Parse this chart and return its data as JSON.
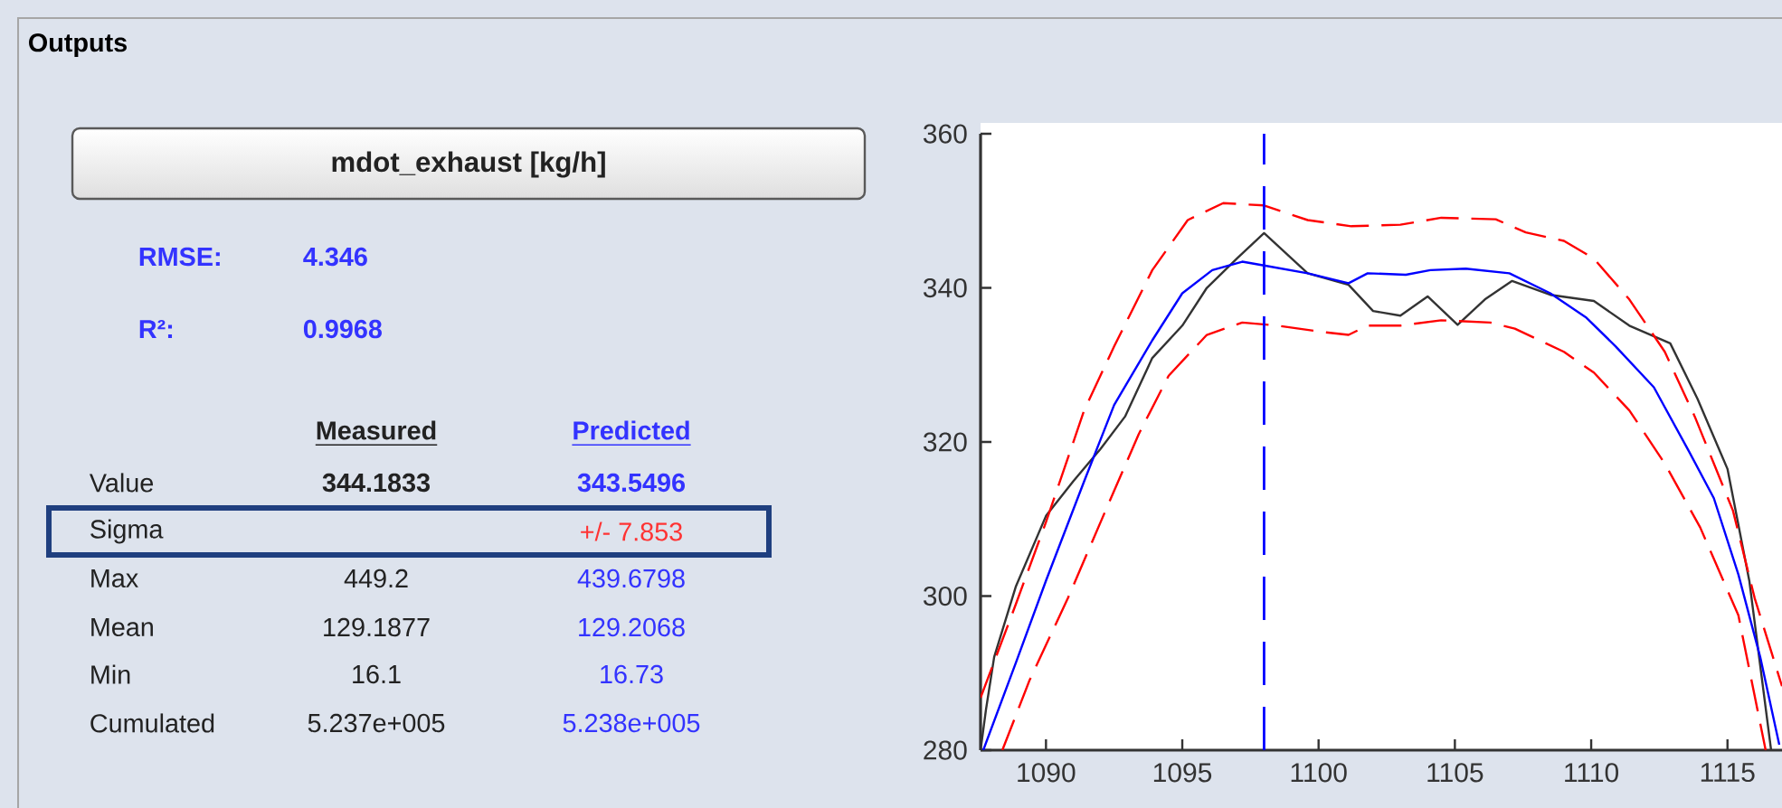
{
  "chart_data": [
    {
      "type": "other",
      "title": "Outputs",
      "subtitle": "mdot_exhaust [kg/h]",
      "annotations": [
        "RMSE:",
        "4.346",
        "R²:",
        "0.9968",
        "Measured",
        "Predicted",
        "Value",
        "344.1833",
        "343.5496",
        "Sigma",
        "+/- 7.853",
        "Max",
        "449.2",
        "439.6798",
        "Mean",
        "129.1877",
        "129.2068",
        "Min",
        "16.1",
        "16.73",
        "Cumulated",
        "5.237e+005",
        "5.238e+005"
      ]
    },
    {
      "type": "line",
      "xlim": [
        1087.6,
        1117
      ],
      "ylim": [
        280,
        360
      ],
      "xticks": [
        1090,
        1095,
        1100,
        1105,
        1110,
        1115
      ],
      "yticks": [
        280,
        300,
        320,
        340,
        360
      ],
      "ref_lines": [
        {
          "axis": "x",
          "value": 1098,
          "color": "#0000ff",
          "line_style": "dashed"
        }
      ],
      "series": [
        {
          "color": "#333333",
          "line_style": "solid",
          "x": [
            1087.6,
            1087.8,
            1088.1,
            1088.9,
            1090,
            1091,
            1092,
            1092.9,
            1093.9,
            1095,
            1095.9,
            1097,
            1098,
            1099.6,
            1101.1,
            1102,
            1103,
            1104,
            1105.1,
            1106.1,
            1107.1,
            1108.5,
            1110.1,
            1111.4,
            1112.9,
            1113.9,
            1115,
            1115.8,
            1116.6
          ],
          "values": [
            280,
            285.3,
            292.1,
            301.3,
            310.4,
            314.9,
            319.1,
            323.3,
            330.9,
            335.1,
            340,
            343.8,
            347.1,
            341.9,
            340.4,
            337,
            336.4,
            338.9,
            335.2,
            338.5,
            340.9,
            339.1,
            338.3,
            335.1,
            332.8,
            325.6,
            316.5,
            302,
            280
          ]
        },
        {
          "color": "#0000ff",
          "line_style": "solid",
          "x": [
            1087.7,
            1088.9,
            1090,
            1091.4,
            1092.5,
            1093.9,
            1095,
            1096.1,
            1097.2,
            1098,
            1099.6,
            1101.1,
            1101.8,
            1103.2,
            1104.1,
            1105.4,
            1107,
            1108.5,
            1109.8,
            1110.9,
            1112.3,
            1113.6,
            1114.5,
            1115.4,
            1116.2,
            1116.9
          ],
          "values": [
            280,
            291.4,
            302,
            314.9,
            324.8,
            333.2,
            339.3,
            342.3,
            343.4,
            342.9,
            341.9,
            340.6,
            341.9,
            341.7,
            342.3,
            342.5,
            341.9,
            339.3,
            336.2,
            332.4,
            327.1,
            318.7,
            312.7,
            302.8,
            292.1,
            280.7
          ]
        },
        {
          "color": "#ff0000",
          "line_style": "dashed",
          "x": [
            1087.6,
            1088.9,
            1090,
            1091.4,
            1092.5,
            1093.9,
            1095.2,
            1096.5,
            1098,
            1099.6,
            1101.2,
            1103,
            1104.5,
            1106.5,
            1107.6,
            1109,
            1110.1,
            1111.4,
            1112.7,
            1113.8,
            1115.2,
            1116,
            1117
          ],
          "values": [
            286.8,
            299,
            309.6,
            324.1,
            332.4,
            342.3,
            348.8,
            351,
            350.7,
            348.8,
            348,
            348.2,
            349.1,
            348.9,
            347.2,
            346.1,
            343.8,
            338.5,
            331.7,
            323.3,
            311.1,
            299.7,
            288.3
          ]
        },
        {
          "color": "#ff0000",
          "line_style": "dashed",
          "x": [
            1088.4,
            1089.4,
            1090.8,
            1092.1,
            1093.4,
            1094.5,
            1095.9,
            1097.2,
            1098.5,
            1100.1,
            1101.1,
            1101.8,
            1103,
            1104.5,
            1106.3,
            1107.2,
            1109,
            1110.1,
            1111.4,
            1112.7,
            1114,
            1115.4,
            1116.4
          ],
          "values": [
            280,
            289.1,
            299.7,
            310.4,
            321,
            328.6,
            333.9,
            335.5,
            335.1,
            334.3,
            333.9,
            335.1,
            335.1,
            335.8,
            335.5,
            334.7,
            331.7,
            329,
            324.1,
            317.2,
            308.9,
            297.5,
            280
          ]
        }
      ]
    }
  ]
}
